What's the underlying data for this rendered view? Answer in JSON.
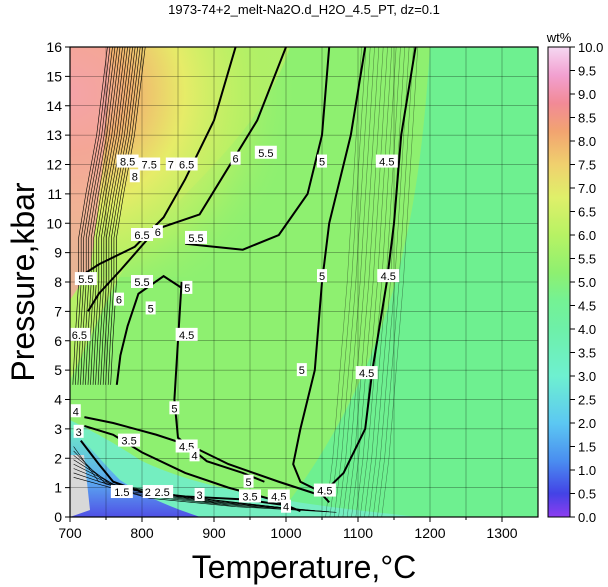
{
  "chart_data": {
    "type": "heatmap",
    "title": "1973-74+2_melt-Na2O.d_H2O_4.5_PT, dz=0.1",
    "xlabel": "Temperature,°C",
    "ylabel": "Pressure,kbar",
    "xlim": [
      700,
      1350
    ],
    "ylim": [
      0,
      16
    ],
    "x_ticks": [
      "700",
      "800",
      "900",
      "1000",
      "1100",
      "1200",
      "1300"
    ],
    "y_ticks": [
      "0",
      "1",
      "2",
      "3",
      "4",
      "5",
      "6",
      "7",
      "8",
      "9",
      "10",
      "11",
      "12",
      "13",
      "14",
      "15",
      "16"
    ],
    "grid": true,
    "colorbar": {
      "label": "wt%",
      "range": [
        0.0,
        10.0
      ],
      "ticks": [
        "0.0",
        "0.5",
        "1.0",
        "1.5",
        "2.0",
        "2.5",
        "3.0",
        "3.5",
        "4.0",
        "4.5",
        "5.0",
        "5.5",
        "6.0",
        "6.5",
        "7.0",
        "7.5",
        "8.0",
        "8.5",
        "9.0",
        "9.5",
        "10.0"
      ]
    },
    "contour_labels": [
      {
        "value": "8.5",
        "T": 780,
        "P": 12.1
      },
      {
        "value": "8",
        "T": 790,
        "P": 11.6
      },
      {
        "value": "7.5",
        "T": 810,
        "P": 12.0
      },
      {
        "value": "7",
        "T": 840,
        "P": 12.0
      },
      {
        "value": "6.5",
        "T": 862,
        "P": 12.0
      },
      {
        "value": "6",
        "T": 930,
        "P": 12.2
      },
      {
        "value": "5.5",
        "T": 972,
        "P": 12.4
      },
      {
        "value": "5",
        "T": 1050,
        "P": 12.1
      },
      {
        "value": "4.5",
        "T": 1140,
        "P": 12.1
      },
      {
        "value": "6.5",
        "T": 800,
        "P": 9.6
      },
      {
        "value": "6",
        "T": 822,
        "P": 9.7
      },
      {
        "value": "5.5",
        "T": 875,
        "P": 9.5
      },
      {
        "value": "6",
        "T": 768,
        "P": 7.4
      },
      {
        "value": "5.5",
        "T": 800,
        "P": 8.0
      },
      {
        "value": "5",
        "T": 812,
        "P": 7.1
      },
      {
        "value": "5",
        "T": 863,
        "P": 7.8
      },
      {
        "value": "4.5",
        "T": 862,
        "P": 6.2
      },
      {
        "value": "5",
        "T": 1050,
        "P": 8.2
      },
      {
        "value": "4.5",
        "T": 1142,
        "P": 8.2
      },
      {
        "value": "5",
        "T": 1022,
        "P": 5.0
      },
      {
        "value": "4.5",
        "T": 1112,
        "P": 4.9
      },
      {
        "value": "5",
        "T": 845,
        "P": 3.7
      },
      {
        "value": "6.5",
        "T": 713,
        "P": 6.2
      },
      {
        "value": "5.5",
        "T": 722,
        "P": 8.1
      },
      {
        "value": "3",
        "T": 712,
        "P": 2.9
      },
      {
        "value": "4",
        "T": 708,
        "P": 3.6
      },
      {
        "value": "3.5",
        "T": 782,
        "P": 2.6
      },
      {
        "value": "4.5",
        "T": 862,
        "P": 2.4
      },
      {
        "value": "4",
        "T": 873,
        "P": 2.1
      },
      {
        "value": "5",
        "T": 948,
        "P": 1.2
      },
      {
        "value": "4.5",
        "T": 1054,
        "P": 0.9
      },
      {
        "value": "4.5",
        "T": 990,
        "P": 0.7
      },
      {
        "value": "4",
        "T": 1000,
        "P": 0.35
      },
      {
        "value": "1.5",
        "T": 772,
        "P": 0.85
      },
      {
        "value": "2",
        "T": 808,
        "P": 0.85
      },
      {
        "value": "2.5",
        "T": 828,
        "P": 0.85
      },
      {
        "value": "3",
        "T": 880,
        "P": 0.75
      },
      {
        "value": "3.5",
        "T": 950,
        "P": 0.7
      }
    ]
  }
}
